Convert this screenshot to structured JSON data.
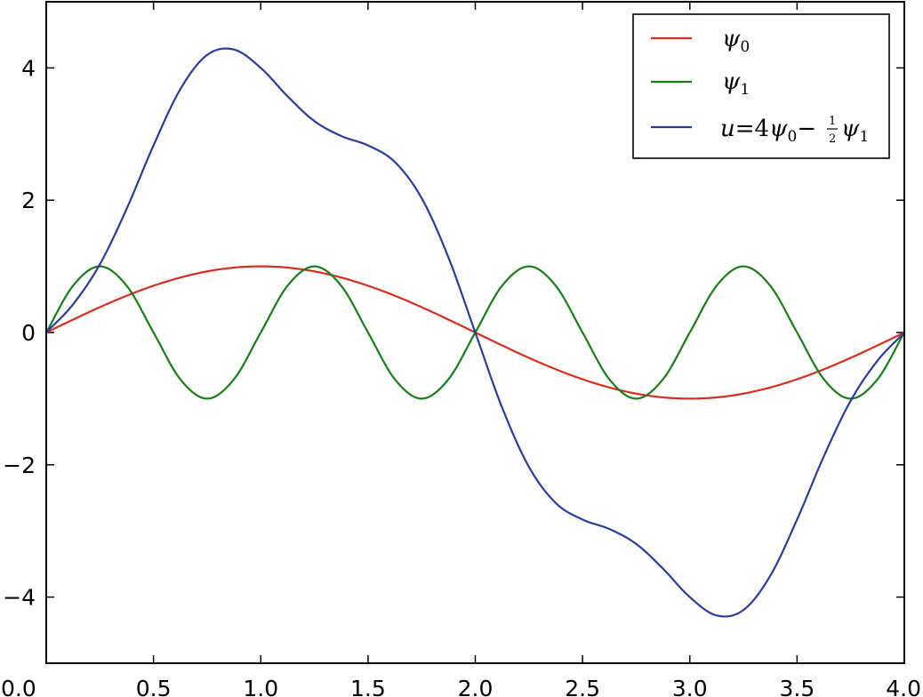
{
  "chart_data": {
    "type": "line",
    "title": "",
    "xlabel": "",
    "ylabel": "",
    "xlim": [
      0.0,
      4.0
    ],
    "ylim": [
      -5,
      5
    ],
    "grid": false,
    "legend_position": "top-right",
    "x_ticks": [
      0.0,
      0.5,
      1.0,
      1.5,
      2.0,
      2.5,
      3.0,
      3.5,
      4.0
    ],
    "x_tick_labels": [
      "0.0",
      "0.5",
      "1.0",
      "1.5",
      "2.0",
      "2.5",
      "3.0",
      "3.5",
      "4.0"
    ],
    "y_ticks": [
      -4,
      -2,
      0,
      2,
      4
    ],
    "y_tick_labels": [
      "−4",
      "−2",
      "0",
      "2",
      "4"
    ],
    "x": [
      0.0,
      0.125,
      0.25,
      0.375,
      0.5,
      0.625,
      0.75,
      0.875,
      1.0,
      1.125,
      1.25,
      1.375,
      1.5,
      1.625,
      1.75,
      1.875,
      2.0,
      2.125,
      2.25,
      2.375,
      2.5,
      2.625,
      2.75,
      2.875,
      3.0,
      3.125,
      3.25,
      3.375,
      3.5,
      3.625,
      3.75,
      3.875,
      4.0
    ],
    "series": [
      {
        "name": "ψ₀",
        "color": "#d62f1f",
        "values": [
          0.0,
          0.195,
          0.383,
          0.556,
          0.707,
          0.831,
          0.924,
          0.981,
          1.0,
          0.981,
          0.924,
          0.831,
          0.707,
          0.556,
          0.383,
          0.195,
          0.0,
          -0.195,
          -0.383,
          -0.556,
          -0.707,
          -0.831,
          -0.924,
          -0.981,
          -1.0,
          -0.981,
          -0.924,
          -0.831,
          -0.707,
          -0.556,
          -0.383,
          -0.195,
          0.0
        ]
      },
      {
        "name": "ψ₁",
        "color": "#1a7d1a",
        "values": [
          0.0,
          0.707,
          1.0,
          0.707,
          0.0,
          -0.707,
          -1.0,
          -0.707,
          0.0,
          0.707,
          1.0,
          0.707,
          0.0,
          -0.707,
          -1.0,
          -0.707,
          0.0,
          0.707,
          1.0,
          0.707,
          0.0,
          -0.707,
          -1.0,
          -0.707,
          0.0,
          0.707,
          1.0,
          0.707,
          0.0,
          -0.707,
          -1.0,
          -0.707,
          0.0
        ]
      },
      {
        "name": "u = 4ψ₀ − ½ψ₁",
        "color": "#2a3d99",
        "values": [
          0.0,
          0.426,
          1.031,
          1.871,
          2.828,
          3.678,
          4.196,
          4.278,
          4.0,
          3.571,
          3.196,
          2.971,
          2.828,
          2.578,
          2.031,
          1.134,
          0.0,
          -1.134,
          -2.031,
          -2.578,
          -2.828,
          -2.971,
          -3.196,
          -3.571,
          -4.0,
          -4.278,
          -4.196,
          -3.678,
          -2.828,
          -1.871,
          -1.031,
          -0.426,
          0.0
        ]
      }
    ]
  },
  "legend": {
    "items": [
      {
        "symbol": "ψ",
        "sub": "0"
      },
      {
        "symbol": "ψ",
        "sub": "1"
      },
      {
        "prefix": "u",
        "eq": "=",
        "coef": "4",
        "s1": "ψ",
        "sub1": "0",
        "minus": "−",
        "frac_num": "1",
        "frac_den": "2",
        "s2": "ψ",
        "sub2": "1"
      }
    ]
  }
}
